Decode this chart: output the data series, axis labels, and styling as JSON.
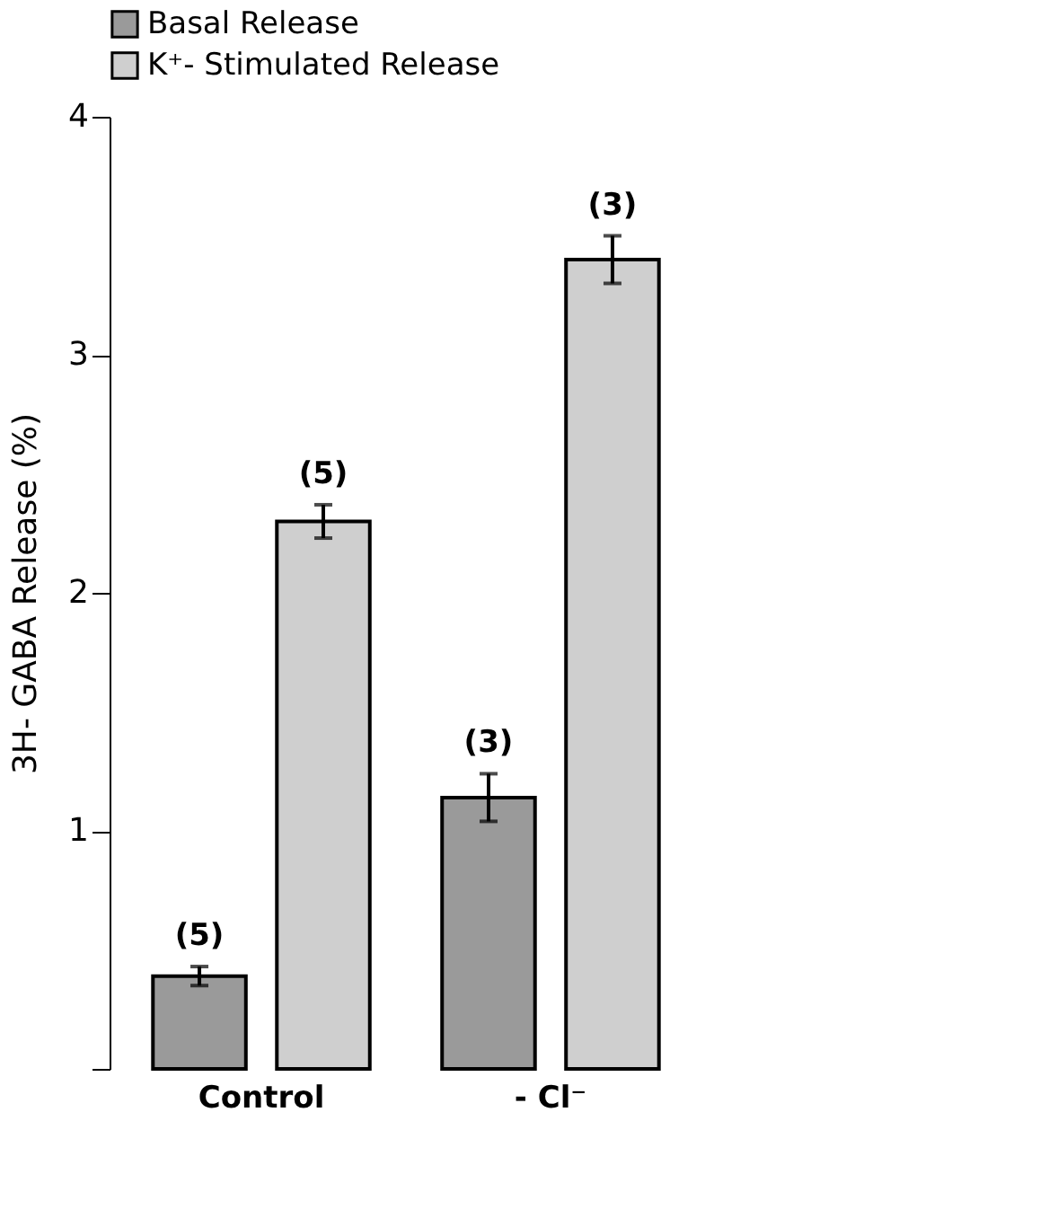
{
  "chart_data": {
    "type": "bar",
    "ylabel": "3H- GABA Release (%)",
    "categories": [
      "Control",
      "- Cl⁻"
    ],
    "series": [
      {
        "name": "Basal Release",
        "color": "#9a9a9a",
        "values": [
          0.39,
          1.14
        ],
        "errors": [
          0.04,
          0.1
        ]
      },
      {
        "name": "K⁺- Stimulated Release",
        "color": "#cfcfcf",
        "values": [
          2.3,
          3.4
        ],
        "errors": [
          0.07,
          0.1
        ]
      }
    ],
    "ylim": [
      0,
      4
    ],
    "yticks": [
      {
        "value": 0,
        "label": null
      },
      1,
      2,
      3,
      4
    ],
    "grid": false,
    "legend": "top",
    "annotations": [
      "(5)",
      "(5)",
      "(3)",
      "(3)"
    ]
  }
}
